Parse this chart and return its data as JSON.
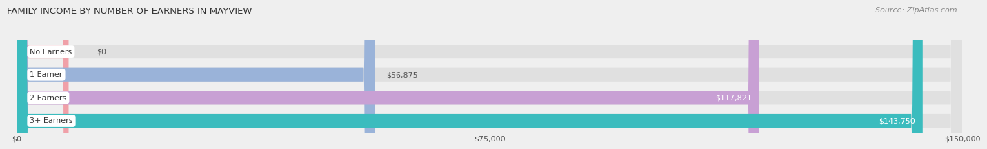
{
  "title": "FAMILY INCOME BY NUMBER OF EARNERS IN MAYVIEW",
  "source": "Source: ZipAtlas.com",
  "categories": [
    "No Earners",
    "1 Earner",
    "2 Earners",
    "3+ Earners"
  ],
  "values": [
    0,
    56875,
    117821,
    143750
  ],
  "labels": [
    "$0",
    "$56,875",
    "$117,821",
    "$143,750"
  ],
  "bar_colors": [
    "#f0a0a8",
    "#9ab3d9",
    "#c8a0d4",
    "#3bbcbe"
  ],
  "label_colors": [
    "#666666",
    "#555555",
    "#ffffff",
    "#ffffff"
  ],
  "bg_color": "#efefef",
  "bar_bg_color": "#e0e0e0",
  "max_value": 150000,
  "xtick_values": [
    0,
    75000,
    150000
  ],
  "xtick_labels": [
    "$0",
    "$75,000",
    "$150,000"
  ],
  "title_fontsize": 9.5,
  "source_fontsize": 8,
  "bar_label_fontsize": 8,
  "category_fontsize": 8
}
